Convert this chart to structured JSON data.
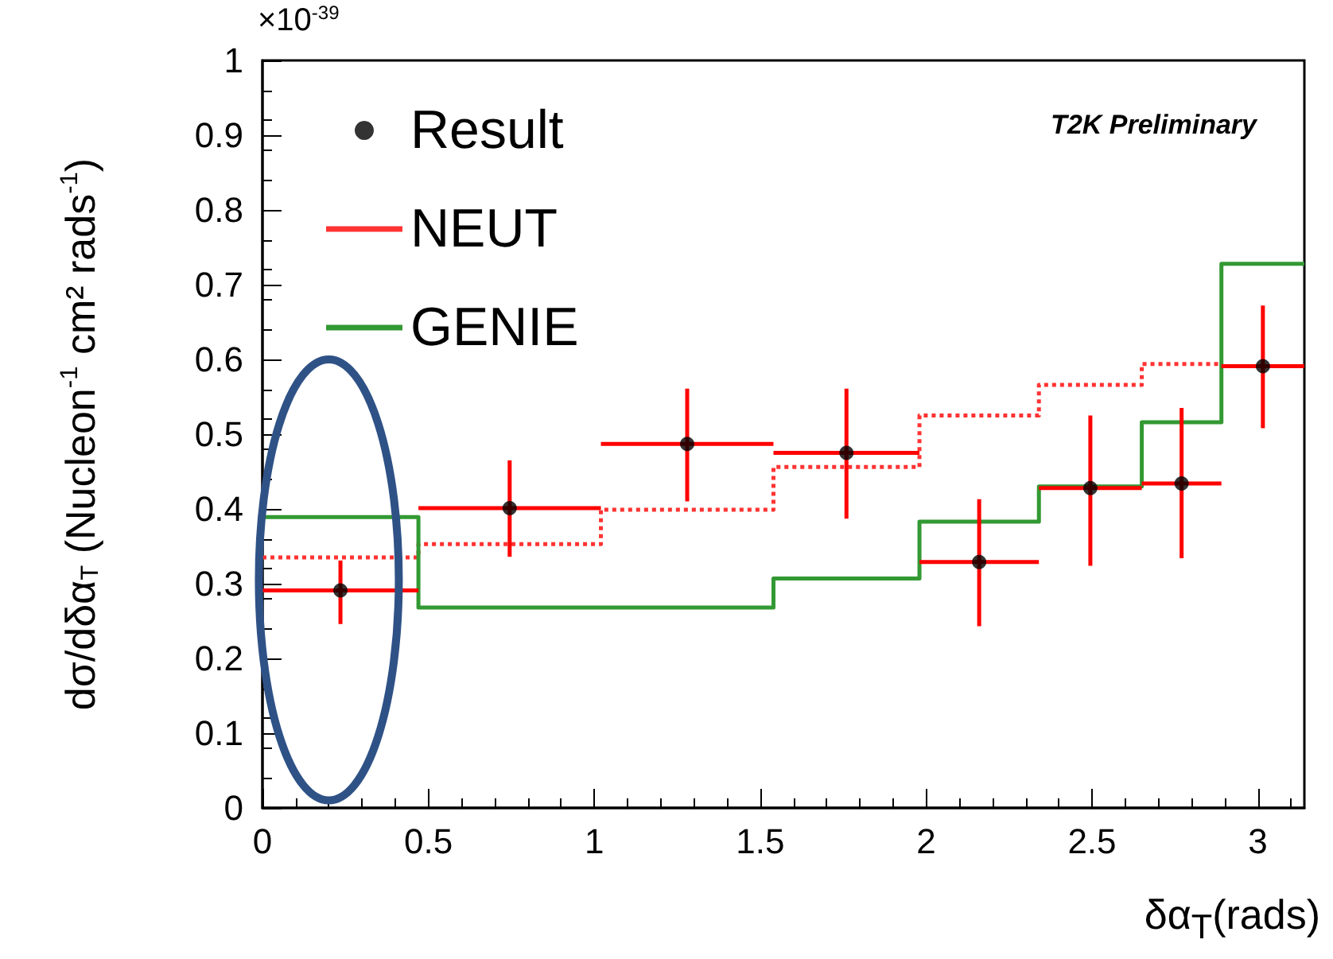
{
  "chart_data": {
    "type": "scatter",
    "xlabel": "δα$_{T}$(rads)",
    "ylabel": "dσ/dδα$_{T}$ (Nucleon$^{-1}$ cm² rads$^{-1}$)",
    "annotations": [
      "×10$^{-39}$",
      "T2K Preliminary"
    ],
    "bins": [
      0,
      0.47,
      1.02,
      1.54,
      1.98,
      2.34,
      2.65,
      2.89,
      3.14
    ],
    "series": [
      {
        "name": "Result",
        "color": "#000000",
        "x": [
          0.235,
          0.745,
          1.28,
          1.76,
          2.16,
          2.495,
          2.77,
          3.015
        ],
        "values": [
          0.291,
          0.401,
          0.487,
          0.475,
          0.329,
          0.428,
          0.434,
          0.591
        ],
        "errors": [
          [
            0.246,
            0.331
          ],
          [
            0.336,
            0.465
          ],
          [
            0.41,
            0.561
          ],
          [
            0.387,
            0.561
          ],
          [
            0.243,
            0.413
          ],
          [
            0.324,
            0.525
          ],
          [
            0.334,
            0.535
          ],
          [
            0.508,
            0.672
          ]
        ],
        "xerrors": [
          [
            0,
            0.47
          ],
          [
            0.47,
            1.02
          ],
          [
            1.02,
            1.54
          ],
          [
            1.54,
            1.98
          ],
          [
            1.98,
            2.34
          ],
          [
            2.34,
            2.65
          ],
          [
            2.65,
            2.89
          ],
          [
            2.89,
            3.14
          ]
        ],
        "marker": "circle"
      },
      {
        "name": "NEUT",
        "type": "histogram",
        "color": "#ff3333",
        "line_style": "dotted",
        "bins": [
          0,
          0.47,
          1.02,
          1.54,
          1.98,
          2.34,
          2.65,
          2.89
        ],
        "values": [
          0.335,
          0.353,
          0.399,
          0.456,
          0.525,
          0.566,
          0.594
        ]
      },
      {
        "name": "GENIE",
        "type": "histogram",
        "color": "#339933",
        "line_style": "solid",
        "values": [
          0.389,
          0.268,
          0.268,
          0.307,
          0.383,
          0.43,
          0.516,
          0.728
        ]
      }
    ],
    "xlim": [
      0,
      3.14
    ],
    "xticks": [
      0,
      0.5,
      1,
      1.5,
      2,
      2.5,
      3
    ],
    "ylim": [
      0,
      1
    ],
    "yticks": [
      0,
      0.1,
      0.2,
      0.3,
      0.4,
      0.5,
      0.6,
      0.7,
      0.8,
      0.9,
      1
    ],
    "grid": false,
    "legend": "top left"
  }
}
